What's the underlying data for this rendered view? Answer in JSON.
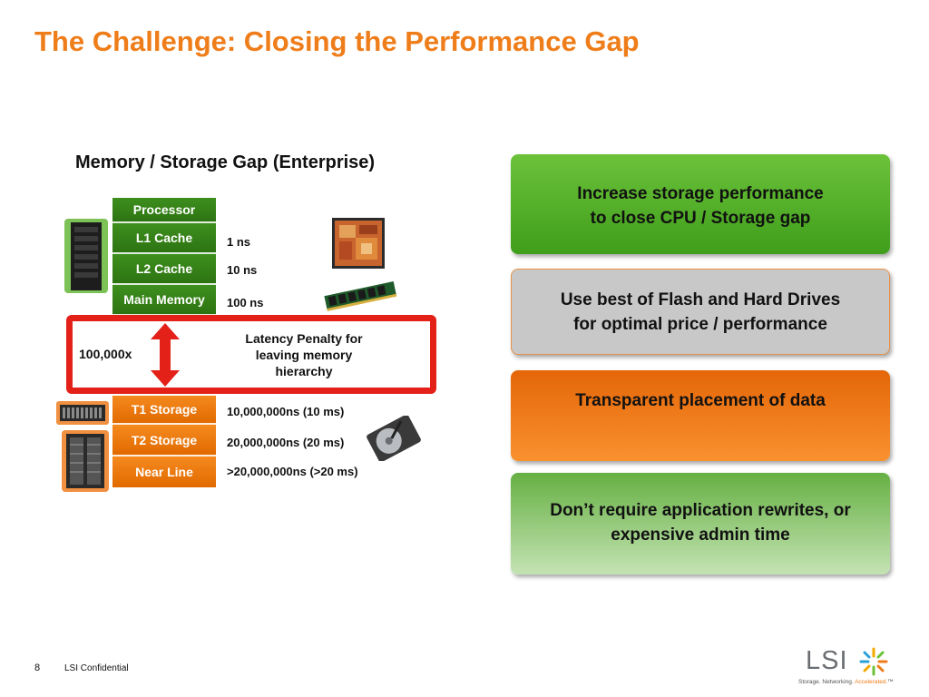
{
  "slide": {
    "title": "The Challenge: Closing the Performance Gap",
    "page_number": "8",
    "footer_text": "LSI Confidential"
  },
  "diagram": {
    "subtitle": "Memory / Storage Gap (Enterprise)",
    "tiers_upper": [
      {
        "label": "Processor",
        "latency": ""
      },
      {
        "label": "L1 Cache",
        "latency": "1 ns"
      },
      {
        "label": "L2 Cache",
        "latency": "10 ns"
      },
      {
        "label": "Main Memory",
        "latency": "100 ns"
      }
    ],
    "gap": {
      "multiplier": "100,000x",
      "penalty_line1": "Latency Penalty for",
      "penalty_line2": "leaving memory",
      "penalty_line3": "hierarchy"
    },
    "tiers_lower": [
      {
        "label": "T1 Storage",
        "latency": "10,000,000ns (10 ms)"
      },
      {
        "label": "T2 Storage",
        "latency": "20,000,000ns (20 ms)"
      },
      {
        "label": "Near Line",
        "latency": ">20,000,000ns (>20 ms)"
      }
    ],
    "colors": {
      "upper_tier": "#2d7412",
      "lower_tier": "#e16a00",
      "gap_box": "#e32119",
      "arrow": "#e32119"
    }
  },
  "cards": [
    {
      "line1": "Increase storage performance",
      "line2": "to close CPU / Storage gap",
      "color": "#4fa826"
    },
    {
      "line1": "Use best of Flash and Hard Drives",
      "line2": "for optimal price / performance",
      "color": "#c8c8c8"
    },
    {
      "line1": "Transparent placement of data",
      "line2": "",
      "color": "#ee7d1a"
    },
    {
      "line1": "Don’t require application rewrites, or",
      "line2": "expensive admin time",
      "color": "#8cc870"
    }
  ],
  "logo": {
    "word": "LSI",
    "tagline": "Storage. Networking.",
    "tagline_accent": "Accelerated.",
    "mark": "™"
  }
}
